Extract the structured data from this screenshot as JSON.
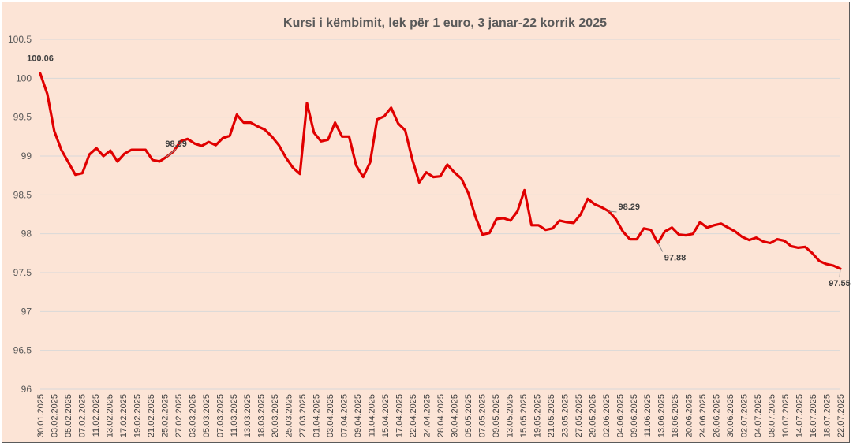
{
  "chart_data": {
    "type": "line",
    "title": "Kursi i këmbimit, lek për 1 euro, 3 janar-22 korrik 2025",
    "xlabel": "",
    "ylabel": "",
    "ylim": [
      96,
      100.5
    ],
    "yticks": [
      "100.5",
      "100",
      "99.5",
      "99",
      "98.5",
      "98",
      "97.5",
      "97",
      "96.5",
      "96"
    ],
    "grid": true,
    "legend": "none",
    "line_color": "#e00000",
    "x_tick_labels": [
      "30.01.2025",
      "03.02.2025",
      "05.02.2025",
      "07.02.2025",
      "11.02.2025",
      "13.02.2025",
      "17.02.2025",
      "19.02.2025",
      "21.02.2025",
      "25.02.2025",
      "27.02.2025",
      "03.03.2025",
      "05.03.2025",
      "07.03.2025",
      "11.03.2025",
      "13.03.2025",
      "18.03.2025",
      "20.03.2025",
      "25.03.2025",
      "27.03.2025",
      "01.04.2025",
      "03.04.2025",
      "07.04.2025",
      "09.04.2025",
      "11.04.2025",
      "15.04.2025",
      "17.04.2025",
      "22.04.2025",
      "24.04.2025",
      "28.04.2025",
      "30.04.2025",
      "05.05.2025",
      "07.05.2025",
      "09.05.2025",
      "13.05.2025",
      "15.05.2025",
      "19.05.2025",
      "21.05.2025",
      "23.05.2025",
      "27.05.2025",
      "29.05.2025",
      "02.06.2025",
      "04.06.2025",
      "09.06.2025",
      "11.06.2025",
      "13.06.2025",
      "18.06.2025",
      "20.06.2025",
      "24.06.2025",
      "26.06.2025",
      "30.06.2025",
      "02.07.2025",
      "04.07.2025",
      "08.07.2025",
      "10.07.2025",
      "14.07.2025",
      "16.07.2025",
      "18.07.2025",
      "22.07.2025"
    ],
    "series": [
      {
        "values": [
          100.06,
          99.8,
          99.32,
          99.08,
          98.92,
          98.76,
          98.78,
          99.02,
          99.1,
          99.0,
          99.07,
          98.93,
          99.03,
          99.08,
          99.08,
          99.08,
          98.95,
          98.93,
          98.99,
          99.06,
          99.19,
          99.22,
          99.16,
          99.13,
          99.18,
          99.14,
          99.23,
          99.26,
          99.53,
          99.43,
          99.43,
          99.38,
          99.34,
          99.25,
          99.14,
          98.98,
          98.85,
          98.77,
          99.68,
          99.3,
          99.19,
          99.21,
          99.43,
          99.25,
          99.25,
          98.88,
          98.73,
          98.92,
          99.47,
          99.51,
          99.62,
          99.42,
          99.33,
          98.96,
          98.66,
          98.79,
          98.73,
          98.74,
          98.89,
          98.79,
          98.71,
          98.52,
          98.22,
          97.99,
          98.01,
          98.19,
          98.2,
          98.17,
          98.29,
          98.56,
          98.11,
          98.11,
          98.05,
          98.07,
          98.17,
          98.15,
          98.14,
          98.25,
          98.45,
          98.38,
          98.34,
          98.29,
          98.19,
          98.03,
          97.93,
          97.93,
          98.07,
          98.05,
          97.88,
          98.03,
          98.08,
          97.99,
          97.98,
          98.0,
          98.15,
          98.08,
          98.11,
          98.13,
          98.08,
          98.03,
          97.96,
          97.92,
          97.95,
          97.9,
          97.88,
          97.93,
          97.91,
          97.84,
          97.82,
          97.83,
          97.75,
          97.65,
          97.61,
          97.59,
          97.55
        ]
      }
    ],
    "data_labels": [
      {
        "index": 0,
        "text": "100.06"
      },
      {
        "index": 18,
        "text": "98.99"
      },
      {
        "index": 81,
        "text": "98.29"
      },
      {
        "index": 88,
        "text": "97.88"
      },
      {
        "index": 114,
        "text": "97.55"
      }
    ]
  }
}
